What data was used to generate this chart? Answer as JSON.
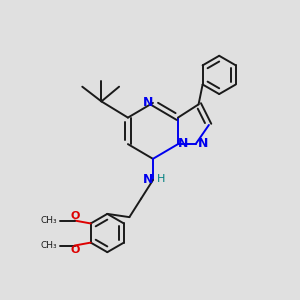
{
  "background_color": "#e0e0e0",
  "bond_color": "#1a1a1a",
  "nitrogen_color": "#0000ee",
  "oxygen_color": "#dd0000",
  "nh_color": "#008080",
  "figsize": [
    3.0,
    3.0
  ],
  "dpi": 100,
  "lw": 1.4,
  "xlim": [
    0,
    10
  ],
  "ylim": [
    0,
    10
  ]
}
